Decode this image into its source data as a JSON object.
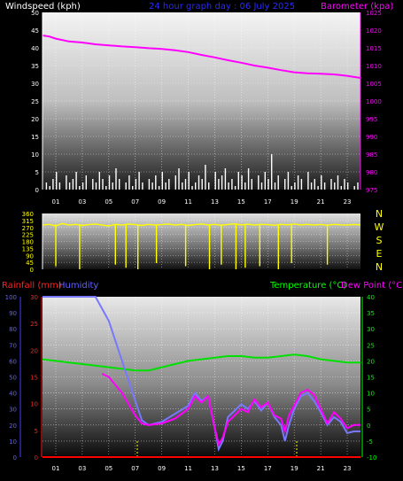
{
  "header": {
    "title": "24 hour graph day : 06 July 2025",
    "left_axis_label": "Windspeed (kph)",
    "right_axis_label": "Barometer (kpa)"
  },
  "colors": {
    "background": "#000000",
    "wind_text": "#ffffff",
    "title_text": "#2a2aff",
    "baro_text": "#ff00ff",
    "baro_line": "#ff00ff",
    "wind_bars": "#ffffff",
    "direction_line": "#ffff00",
    "rain_text": "#ff2020",
    "humidity_text": "#6060ff",
    "humidity_line": "#7878ff",
    "temp_text": "#00ff00",
    "temp_line": "#00e000",
    "dew_text": "#ff00ff",
    "dew_line": "#ff00ff",
    "rain_line": "#ff0000",
    "grid_dots": "#ffffff"
  },
  "x_hour_labels": [
    "01",
    "03",
    "05",
    "07",
    "09",
    "11",
    "13",
    "15",
    "17",
    "19",
    "21",
    "23"
  ],
  "chart_data": [
    {
      "type": "line",
      "title": "24 hour graph day : 06 July 2025",
      "x": "hour of day (0-24)",
      "y_left_label": "Windspeed (kph)",
      "y_left_ticks": [
        0,
        5,
        10,
        15,
        20,
        25,
        30,
        35,
        40,
        45,
        50
      ],
      "y_left_lim": [
        0,
        50
      ],
      "y_right_label": "Barometer (kpa)",
      "y_right_ticks": [
        975,
        980,
        985,
        990,
        995,
        1000,
        1005,
        1010,
        1015,
        1020,
        1025
      ],
      "y_right_lim": [
        975,
        1025
      ],
      "grid": true,
      "series": [
        {
          "name": "Barometer",
          "axis": "right",
          "x": [
            0,
            0.5,
            1,
            2,
            3,
            4,
            5,
            6,
            7,
            8,
            9,
            10,
            11,
            12,
            13,
            14,
            15,
            16,
            17,
            18,
            19,
            20,
            21,
            22,
            23,
            24
          ],
          "y": [
            1018.5,
            1018.2,
            1017.6,
            1016.8,
            1016.5,
            1016.0,
            1015.7,
            1015.4,
            1015.2,
            1014.9,
            1014.7,
            1014.3,
            1013.8,
            1013.0,
            1012.3,
            1011.5,
            1010.8,
            1010.0,
            1009.4,
            1008.7,
            1008.1,
            1007.8,
            1007.7,
            1007.5,
            1007.1,
            1006.5
          ]
        },
        {
          "name": "Windspeed",
          "axis": "left",
          "type": "bar",
          "x": [
            0,
            0.25,
            0.5,
            0.75,
            1,
            1.25,
            1.5,
            1.75,
            2,
            2.25,
            2.5,
            2.75,
            3,
            3.25,
            3.5,
            3.75,
            4,
            4.25,
            4.5,
            4.75,
            5,
            5.25,
            5.5,
            5.75,
            6,
            6.25,
            6.5,
            6.75,
            7,
            7.25,
            7.5,
            7.75,
            8,
            8.25,
            8.5,
            8.75,
            9,
            9.25,
            9.5,
            9.75,
            10,
            10.25,
            10.5,
            10.75,
            11,
            11.25,
            11.5,
            11.75,
            12,
            12.25,
            12.5,
            12.75,
            13,
            13.25,
            13.5,
            13.75,
            14,
            14.25,
            14.5,
            14.75,
            15,
            15.25,
            15.5,
            15.75,
            16,
            16.25,
            16.5,
            16.75,
            17,
            17.25,
            17.5,
            17.75,
            18,
            18.25,
            18.5,
            18.75,
            19,
            19.25,
            19.5,
            19.75,
            20,
            20.25,
            20.5,
            20.75,
            21,
            21.25,
            21.5,
            21.75,
            22,
            22.25,
            22.5,
            22.75,
            23,
            23.25,
            23.5,
            23.75
          ],
          "y": [
            0,
            2,
            1,
            3,
            5,
            2,
            0,
            4,
            2,
            3,
            5,
            1,
            2,
            4,
            0,
            3,
            2,
            5,
            3,
            1,
            4,
            2,
            6,
            3,
            0,
            2,
            4,
            1,
            3,
            5,
            2,
            0,
            3,
            2,
            4,
            1,
            5,
            2,
            3,
            0,
            4,
            6,
            2,
            3,
            5,
            1,
            2,
            4,
            3,
            7,
            2,
            0,
            5,
            3,
            4,
            6,
            2,
            3,
            1,
            5,
            4,
            2,
            6,
            3,
            0,
            4,
            2,
            5,
            3,
            10,
            2,
            4,
            0,
            3,
            5,
            1,
            2,
            4,
            3,
            0,
            5,
            2,
            3,
            1,
            4,
            2,
            0,
            3,
            2,
            4,
            1,
            3,
            2,
            0,
            1,
            2
          ]
        }
      ]
    },
    {
      "type": "line",
      "title": "",
      "y_left_ticks": [
        0,
        45,
        90,
        135,
        180,
        225,
        270,
        315,
        360
      ],
      "y_left_lim": [
        0,
        360
      ],
      "y_right_ticks": [
        "N",
        "W",
        "S",
        "E",
        "N"
      ],
      "grid": true,
      "series": [
        {
          "name": "Wind Direction",
          "x": [
            0,
            0.5,
            1,
            1.5,
            2,
            2.5,
            3,
            3.5,
            4,
            4.5,
            5,
            5.5,
            6,
            6.5,
            7,
            7.5,
            8,
            8.5,
            9,
            9.5,
            10,
            10.5,
            11,
            11.5,
            12,
            12.5,
            13,
            13.5,
            14,
            14.5,
            15,
            15.5,
            16,
            16.5,
            17,
            17.5,
            18,
            18.5,
            19,
            19.5,
            20,
            20.5,
            21,
            21.5,
            22,
            22.5,
            23,
            23.5,
            24
          ],
          "y": [
            285,
            290,
            280,
            295,
            285,
            290,
            283,
            288,
            292,
            285,
            280,
            290,
            285,
            292,
            288,
            283,
            290,
            285,
            288,
            292,
            285,
            290,
            283,
            288,
            292,
            286,
            290,
            284,
            289,
            293,
            286,
            291,
            285,
            290,
            288,
            284,
            290,
            287,
            292,
            286,
            290,
            285,
            289,
            284,
            290,
            287,
            285,
            289,
            286
          ],
          "dips": [
            [
              1,
              20
            ],
            [
              2.8,
              0
            ],
            [
              5.5,
              30
            ],
            [
              6.3,
              10
            ],
            [
              7.2,
              0
            ],
            [
              8.6,
              40
            ],
            [
              10.8,
              20
            ],
            [
              12.6,
              0
            ],
            [
              13.5,
              30
            ],
            [
              14.6,
              0
            ],
            [
              15.3,
              10
            ],
            [
              16.4,
              20
            ],
            [
              17.8,
              0
            ],
            [
              18.8,
              40
            ],
            [
              21.5,
              30
            ]
          ]
        }
      ]
    },
    {
      "type": "line",
      "title": "",
      "legend": [
        "Rainfall (mm)",
        "Humidity",
        "Temperature (°C)",
        "Dew Point (°C)"
      ],
      "y_humidity_ticks": [
        0,
        10,
        20,
        30,
        40,
        50,
        60,
        70,
        80,
        90,
        100
      ],
      "y_humidity_lim": [
        0,
        100
      ],
      "y_rain_ticks": [
        0,
        5,
        10,
        15,
        20,
        25,
        30
      ],
      "y_rain_lim": [
        0,
        30
      ],
      "y_temp_ticks": [
        -10,
        -5,
        0,
        5,
        10,
        15,
        20,
        25,
        30,
        35,
        40
      ],
      "y_temp_lim": [
        -10,
        40
      ],
      "grid": true,
      "series": [
        {
          "name": "Humidity",
          "axis": "humidity",
          "x": [
            0,
            1,
            2,
            3,
            4,
            5,
            6,
            7,
            7.5,
            8,
            9,
            10,
            11,
            11.5,
            12,
            12.5,
            13,
            13.3,
            13.6,
            14,
            15,
            15.5,
            16,
            16.5,
            17,
            17.5,
            18,
            18.3,
            18.6,
            19,
            19.5,
            20,
            20.5,
            21,
            21.5,
            22,
            22.5,
            23,
            23.5,
            24
          ],
          "y": [
            100,
            100,
            100,
            100,
            100,
            85,
            60,
            35,
            23,
            20,
            22,
            27,
            32,
            40,
            35,
            38,
            18,
            5,
            10,
            25,
            33,
            30,
            35,
            29,
            34,
            25,
            20,
            10,
            20,
            30,
            38,
            40,
            35,
            28,
            20,
            25,
            22,
            15,
            16,
            16
          ]
        },
        {
          "name": "Temperature",
          "axis": "temp",
          "x": [
            0,
            1,
            2,
            3,
            4,
            5,
            6,
            7,
            8,
            9,
            10,
            11,
            12,
            13,
            14,
            15,
            16,
            17,
            18,
            19,
            20,
            21,
            22,
            23,
            24
          ],
          "y": [
            20.5,
            20.0,
            19.5,
            19.0,
            18.5,
            18.0,
            17.5,
            17.0,
            17.0,
            18.0,
            19.0,
            20.0,
            20.5,
            21.0,
            21.5,
            21.5,
            21.0,
            21.0,
            21.5,
            22.0,
            21.5,
            20.5,
            20.0,
            19.5,
            19.5
          ]
        },
        {
          "name": "Dew Point",
          "axis": "temp",
          "x": [
            4.5,
            5,
            6,
            7,
            7.5,
            8,
            9,
            10,
            11,
            11.5,
            12,
            12.5,
            13,
            13.3,
            13.6,
            14,
            15,
            15.5,
            16,
            16.5,
            17,
            17.5,
            18,
            18.3,
            18.6,
            19,
            19.5,
            20,
            20.5,
            21,
            21.5,
            22,
            22.5,
            23,
            23.5,
            24
          ],
          "y": [
            16.0,
            15.0,
            10.0,
            3.0,
            0.5,
            0,
            0.5,
            2.0,
            5.0,
            9.0,
            7.0,
            9.0,
            -1.0,
            -6.0,
            -4.0,
            1.0,
            5.0,
            4.0,
            8.0,
            5.5,
            7.0,
            3.0,
            2.0,
            -2.0,
            3.0,
            6.0,
            10.0,
            11.0,
            9.5,
            5.0,
            0.5,
            4.0,
            2.0,
            -1.0,
            0,
            0
          ]
        },
        {
          "name": "Rainfall",
          "axis": "rain",
          "x": [
            0,
            24
          ],
          "y": [
            0,
            0
          ]
        }
      ]
    }
  ]
}
